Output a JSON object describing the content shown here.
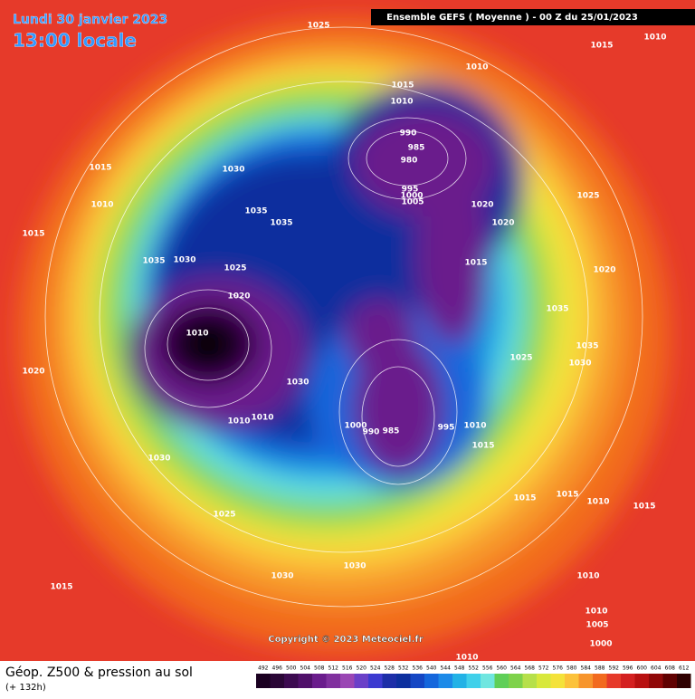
{
  "header": {
    "date": "Lundi 30 janvier 2023",
    "time": "13:00 locale",
    "model": "Ensemble GEFS  ( Moyenne )  -  00 Z du 25/01/2023"
  },
  "copyright": "Copyright © 2023 Meteociel.fr",
  "footer": {
    "title": "Géop. Z500 & pression au sol",
    "lead": "(+ 132h)"
  },
  "scale": {
    "values": [
      492,
      496,
      500,
      504,
      508,
      512,
      516,
      520,
      524,
      528,
      532,
      536,
      540,
      544,
      548,
      552,
      556,
      560,
      564,
      568,
      572,
      576,
      580,
      584,
      588,
      592,
      596,
      600,
      604,
      608,
      612
    ]
  },
  "isobar_labels": [
    1025,
    1015,
    1010,
    1010,
    1015,
    1010,
    990,
    985,
    980,
    1015,
    1030,
    995,
    1000,
    1005,
    1020,
    1025,
    1010,
    1035,
    1035,
    1020,
    1015,
    1035,
    1030,
    1025,
    1015,
    1020,
    1020,
    1010,
    1035,
    1030,
    1035,
    1025,
    1030,
    1020,
    1010,
    1010,
    1000,
    990,
    985,
    995,
    1010,
    1015,
    1030,
    1015,
    1015,
    1010,
    1015,
    1025,
    1030,
    1030,
    1010,
    1015,
    1010,
    1005,
    1000,
    1010
  ]
}
